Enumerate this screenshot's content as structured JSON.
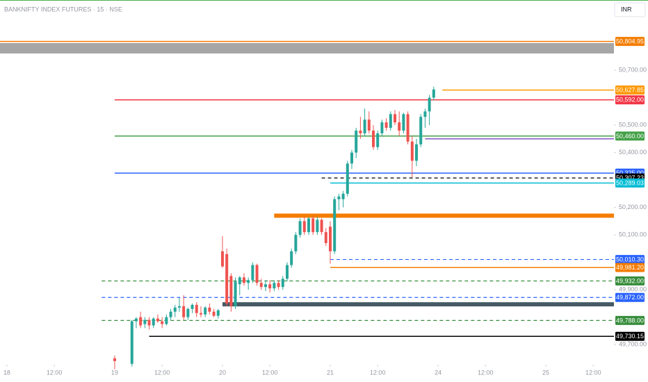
{
  "chart_data": {
    "type": "candlestick",
    "title": "BANKNIFTY INDEX FUTURES · 15 · NSE",
    "currency": "INR",
    "up_color": "#26a69a",
    "down_color": "#ef5350",
    "xlim": [
      -1.6,
      140.8
    ],
    "xticks": [
      {
        "value": 0,
        "label": "18"
      },
      {
        "value": 11,
        "label": "12:00"
      },
      {
        "value": 25,
        "label": "19"
      },
      {
        "value": 36,
        "label": "12:00"
      },
      {
        "value": 50,
        "label": "20"
      },
      {
        "value": 61,
        "label": "12:00"
      },
      {
        "value": 75,
        "label": "21"
      },
      {
        "value": 86,
        "label": "12:00"
      },
      {
        "value": 100,
        "label": "24"
      },
      {
        "value": 111,
        "label": "12:00"
      },
      {
        "value": 125,
        "label": "25"
      },
      {
        "value": 136,
        "label": "12:00"
      }
    ],
    "ylim": [
      49627,
      50956
    ],
    "yticks": [
      {
        "value": 50700,
        "label": "50,700.00"
      },
      {
        "value": 50500,
        "label": "50,500.00"
      },
      {
        "value": 50400,
        "label": "50,400.00"
      },
      {
        "value": 50200,
        "label": "50,200.00"
      },
      {
        "value": 50100,
        "label": "50,100.00"
      },
      {
        "value": 49900,
        "label": "49,900.00"
      },
      {
        "value": 49700,
        "label": "49,700.00"
      }
    ],
    "x": [
      25,
      29,
      30,
      31,
      32,
      33,
      34,
      35,
      36,
      37,
      38,
      39,
      40,
      41,
      42,
      43,
      44,
      45,
      46,
      47,
      48,
      49,
      50,
      51,
      52,
      53,
      54,
      55,
      56,
      57,
      58,
      59,
      60,
      61,
      62,
      63,
      64,
      65,
      66,
      67,
      68,
      69,
      70,
      71,
      72,
      73,
      74,
      75,
      76,
      77,
      78,
      79,
      80,
      81,
      82,
      83,
      84,
      85,
      86,
      87,
      88,
      89,
      90,
      91,
      92,
      93,
      94,
      95,
      96,
      97,
      98,
      99
    ],
    "open": [
      49650,
      49630,
      49785,
      49800,
      49775,
      49790,
      49770,
      49795,
      49785,
      49775,
      49800,
      49820,
      49835,
      49840,
      49800,
      49830,
      49845,
      49815,
      49810,
      49835,
      49820,
      49805,
      50040,
      50030,
      49950,
      49840,
      49920,
      49945,
      49925,
      49935,
      49990,
      49925,
      49910,
      49920,
      49905,
      49925,
      49910,
      49940,
      49990,
      50040,
      50100,
      50150,
      50110,
      50160,
      50110,
      50155,
      50110,
      50130,
      50040,
      50230,
      50230,
      50250,
      50360,
      50400,
      50480,
      50470,
      50520,
      50480,
      50420,
      50470,
      50510,
      50490,
      50540,
      50510,
      50480,
      50540,
      50440,
      50370,
      50430,
      50530,
      50550,
      50600
    ],
    "high": [
      49660,
      49790,
      49800,
      49820,
      49800,
      49800,
      49800,
      49810,
      49800,
      49810,
      49830,
      49845,
      49870,
      49880,
      49835,
      49850,
      49855,
      49840,
      49840,
      49850,
      49830,
      49830,
      50095,
      50050,
      49960,
      49945,
      49950,
      49960,
      49945,
      50000,
      49995,
      49940,
      49935,
      49935,
      49935,
      49935,
      49950,
      50000,
      50050,
      50110,
      50160,
      50165,
      50165,
      50170,
      50165,
      50160,
      50125,
      50150,
      50240,
      50250,
      50260,
      50370,
      50410,
      50490,
      50530,
      50560,
      50550,
      50500,
      50480,
      50520,
      50525,
      50550,
      50555,
      50550,
      50545,
      50550,
      50460,
      50450,
      50540,
      50560,
      50610,
      50640
    ],
    "low": [
      49610,
      49620,
      49760,
      49760,
      49760,
      49755,
      49760,
      49780,
      49760,
      49770,
      49790,
      49800,
      49820,
      49790,
      49790,
      49815,
      49800,
      49800,
      49800,
      49810,
      49800,
      49795,
      49980,
      49840,
      49820,
      49830,
      49880,
      49915,
      49900,
      49925,
      49915,
      49900,
      49895,
      49890,
      49895,
      49900,
      49900,
      49930,
      49980,
      50030,
      50090,
      50100,
      50100,
      50100,
      50100,
      50100,
      50060,
      49995,
      50030,
      50190,
      50200,
      50240,
      50340,
      50380,
      50450,
      50460,
      50470,
      50410,
      50410,
      50460,
      50480,
      50480,
      50500,
      50460,
      50470,
      50430,
      50310,
      50350,
      50420,
      50490,
      50500,
      50590
    ],
    "close": [
      49640,
      49785,
      49795,
      49770,
      49790,
      49770,
      49795,
      49785,
      49775,
      49800,
      49820,
      49835,
      49840,
      49800,
      49830,
      49845,
      49815,
      49810,
      49835,
      49820,
      49805,
      49825,
      49985,
      49850,
      49840,
      49930,
      49945,
      49925,
      49935,
      49990,
      49925,
      49910,
      49920,
      49905,
      49925,
      49910,
      49940,
      49990,
      50040,
      50100,
      50150,
      50110,
      50160,
      50110,
      50155,
      50110,
      50070,
      50040,
      50230,
      50240,
      50250,
      50360,
      50400,
      50480,
      50470,
      50520,
      50480,
      50420,
      50470,
      50510,
      50490,
      50540,
      50510,
      50480,
      50540,
      50440,
      50370,
      50430,
      50530,
      50550,
      50600,
      50630
    ],
    "zones": [
      {
        "top": 50799,
        "bottom": 50761,
        "color": "#a6a6a6",
        "start": -1.6
      }
    ],
    "levels": [
      {
        "value": 50804.95,
        "label": "50,804.95",
        "color": "#f57c00",
        "style": "solid",
        "start": -1.6
      },
      {
        "value": 50627.85,
        "label": "50,627.85",
        "color": "#ff9800",
        "style": "solid",
        "start": 101
      },
      {
        "value": 50592,
        "label": "50,592.00",
        "color": "#f23645",
        "style": "solid",
        "start": 25
      },
      {
        "value": 50460,
        "label": "50,460.00",
        "color": "#43a047",
        "style": "solid",
        "start": 25
      },
      {
        "value": 50450,
        "color": "#7e57c2",
        "style": "solid",
        "start": 97
      },
      {
        "value": 50325,
        "label": "50,325.00",
        "color": "#2962ff",
        "style": "solid",
        "start": 25
      },
      {
        "value": 50307.23,
        "label": "50,307.23",
        "color": "#000000",
        "style": "dashed",
        "start": 73
      },
      {
        "value": 50289.03,
        "label": "50,289.03",
        "color": "#00bcd4",
        "style": "solid",
        "start": 75
      },
      {
        "value": 50170,
        "color": "#f57c00",
        "style": "band",
        "start": 62
      },
      {
        "value": 50010.3,
        "label": "50,010.30",
        "color": "#2962ff",
        "style": "dashed",
        "start": 75
      },
      {
        "value": 49981.2,
        "label": "49,981.20",
        "color": "#f57c00",
        "style": "solid",
        "start": 75
      },
      {
        "value": 49932,
        "label": "49,932.00",
        "color": "#388e3c",
        "style": "dashed",
        "start": 22
      },
      {
        "value": 49872,
        "label": "49,872.00",
        "color": "#2962ff",
        "style": "dashed",
        "start": 22
      },
      {
        "value": 49847,
        "color": "#455a64",
        "style": "band",
        "start": 50
      },
      {
        "value": 49788,
        "label": "49,788.00",
        "color": "#388e3c",
        "style": "dashed",
        "start": 22
      },
      {
        "value": 49730.15,
        "label": "49,730.15",
        "color": "#000000",
        "style": "solid",
        "start": 33
      }
    ]
  }
}
